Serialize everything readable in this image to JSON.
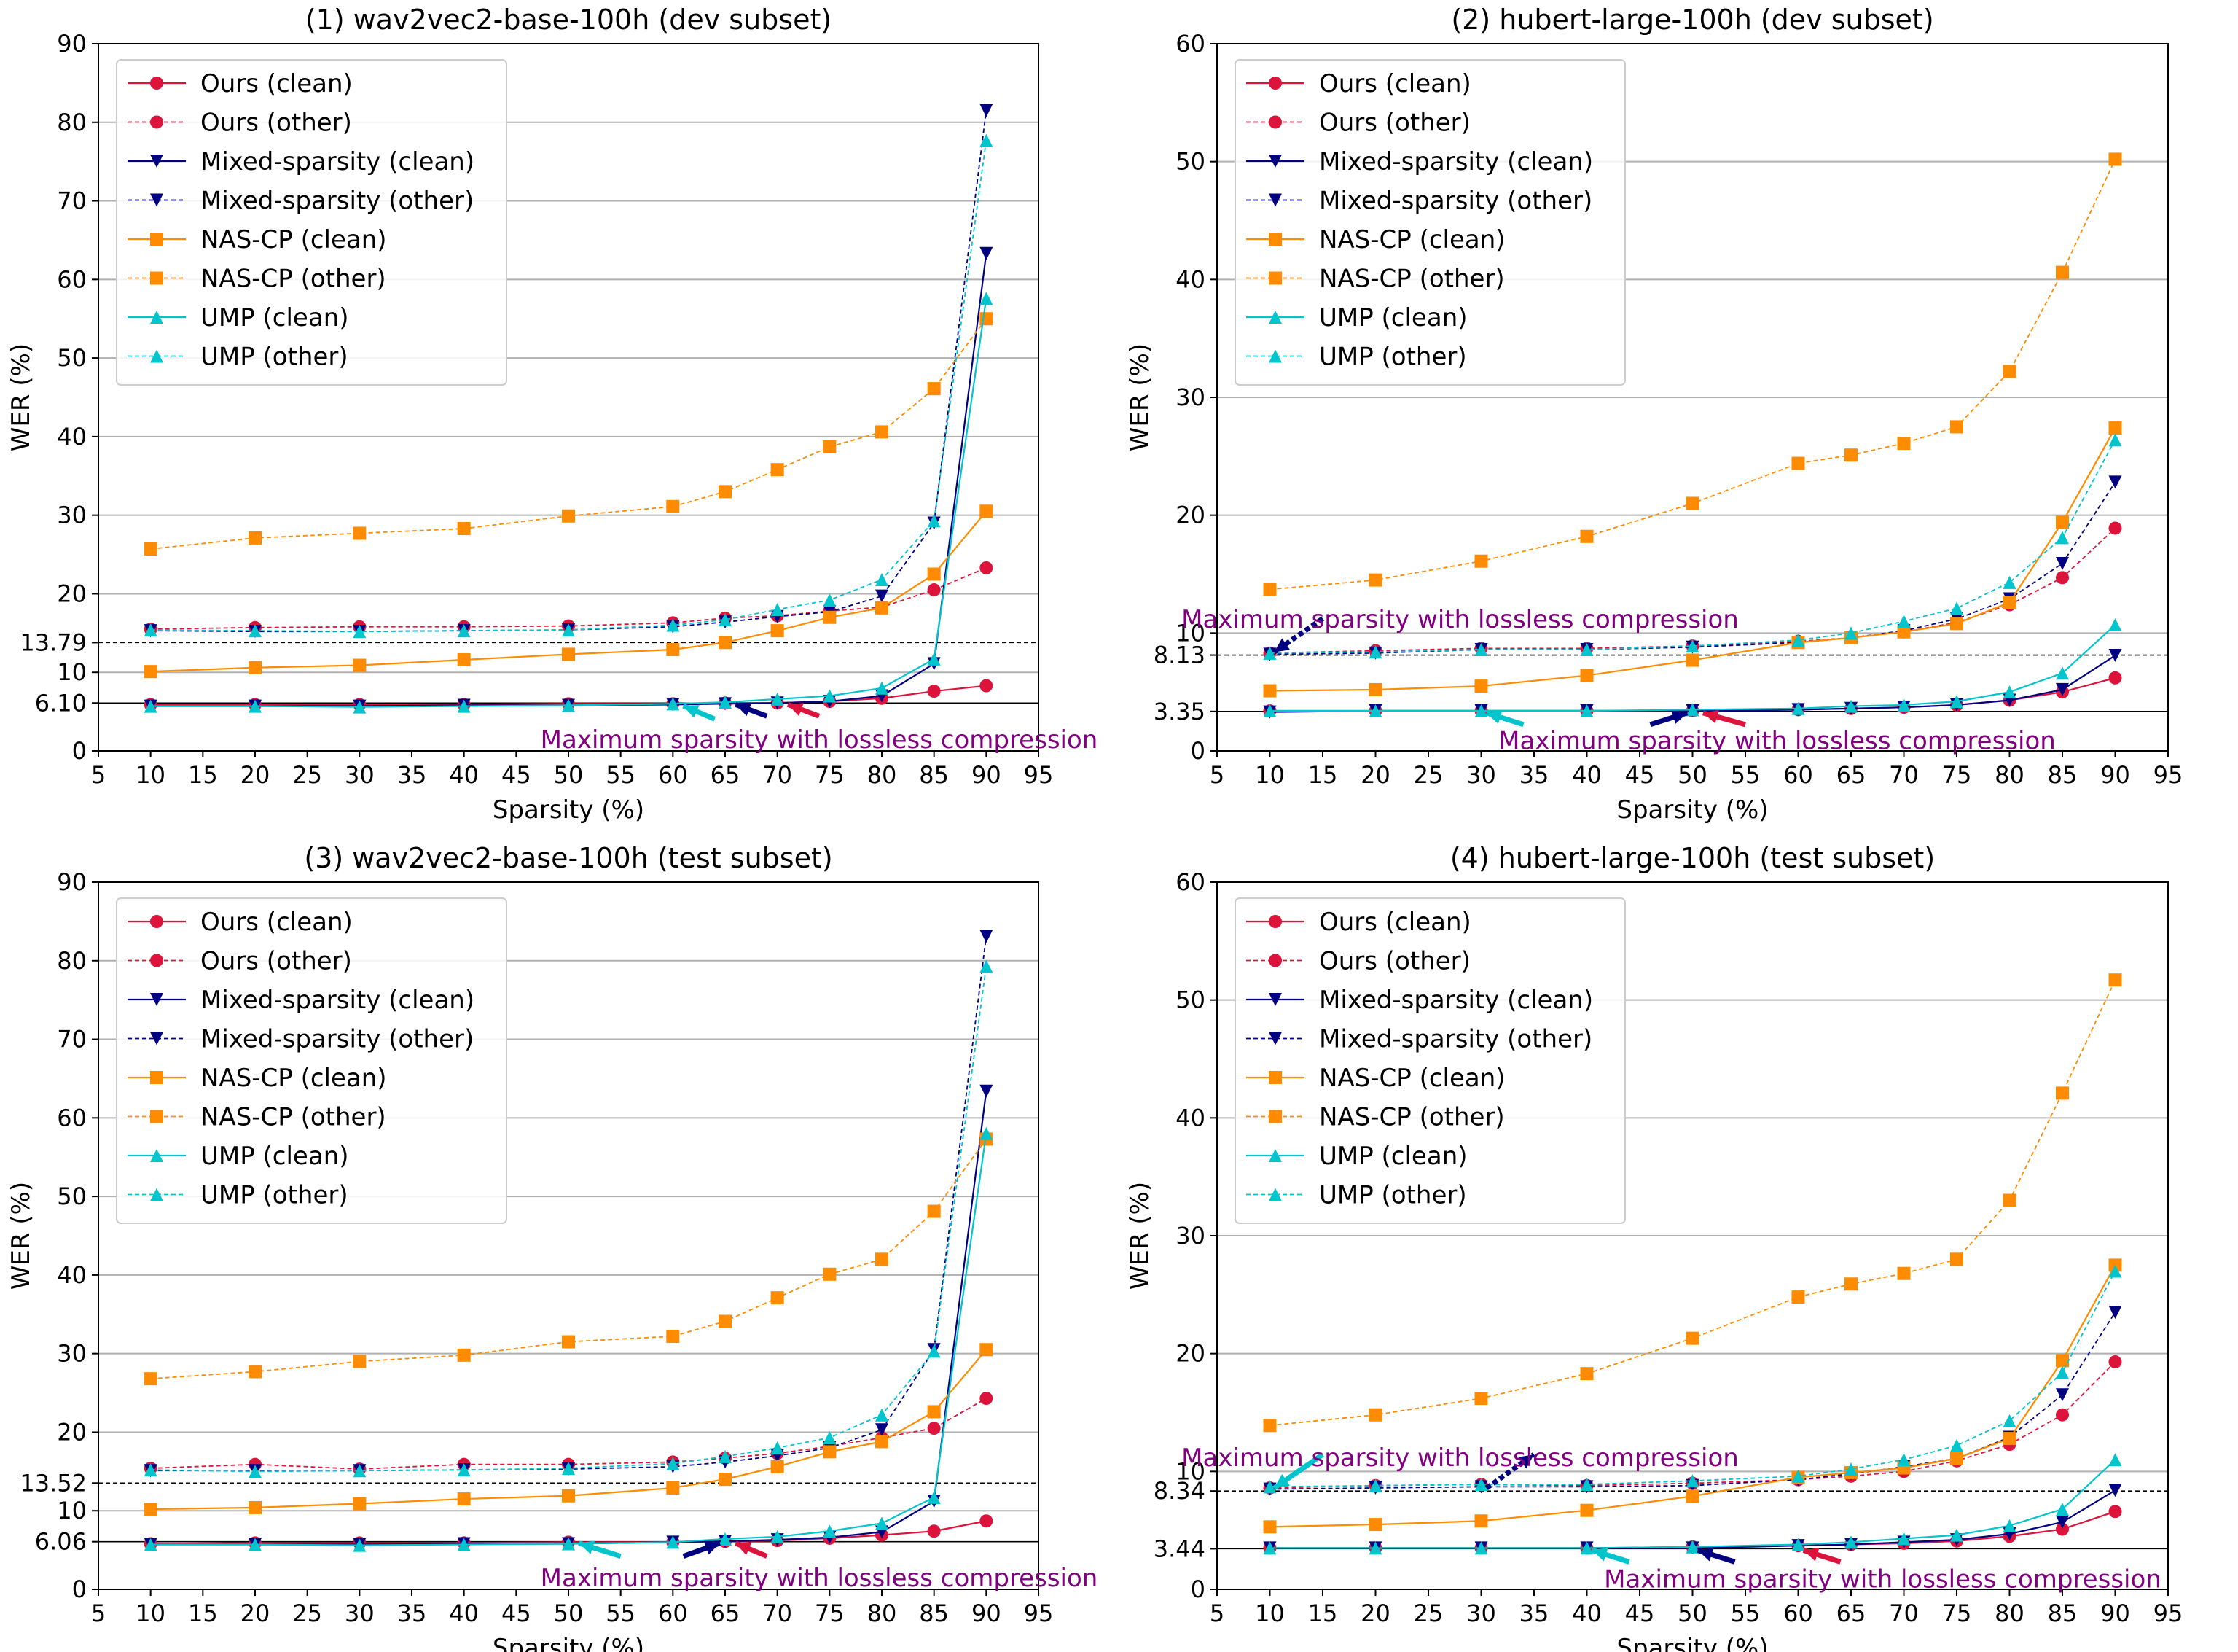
{
  "colors": {
    "ours": "#dc143c",
    "mixed": "#000080",
    "nascp": "#ff8c00",
    "ump": "#00c5cd",
    "annotation": "#800080",
    "grid": "#b0b0b0"
  },
  "chart_data": [
    {
      "type": "line",
      "title": "(1) wav2vec2-base-100h (dev subset)",
      "xlabel": "Sparsity (%)",
      "ylabel": "WER (%)",
      "xlim": [
        5,
        95
      ],
      "ylim": [
        0,
        90
      ],
      "xticks": [
        5,
        10,
        15,
        20,
        25,
        30,
        35,
        40,
        45,
        50,
        55,
        60,
        65,
        70,
        75,
        80,
        85,
        90,
        95
      ],
      "yticks": [
        0,
        10,
        20,
        30,
        40,
        50,
        60,
        70,
        80,
        90
      ],
      "ref_lines": [
        13.79,
        6.1
      ],
      "ref_labels": [
        "13.79",
        "6.10"
      ],
      "x": [
        10,
        20,
        30,
        40,
        50,
        60,
        65,
        70,
        75,
        80,
        85,
        90
      ],
      "series": [
        {
          "name": "Ours (clean)",
          "style": "solid",
          "marker": "circle",
          "color": "ours",
          "values": [
            5.9,
            5.9,
            5.9,
            5.9,
            6.0,
            6.0,
            6.1,
            6.1,
            6.3,
            6.7,
            7.6,
            8.3
          ]
        },
        {
          "name": "Ours (other)",
          "style": "dashed",
          "marker": "circle",
          "color": "ours",
          "values": [
            15.5,
            15.7,
            15.8,
            15.8,
            15.9,
            16.3,
            16.9,
            17.2,
            17.8,
            18.3,
            20.5,
            23.3
          ]
        },
        {
          "name": "Mixed-sparsity (clean)",
          "style": "solid",
          "marker": "tri-down",
          "color": "mixed",
          "values": [
            5.7,
            5.7,
            5.7,
            5.8,
            5.8,
            5.9,
            6.0,
            6.1,
            6.3,
            7.0,
            11.1,
            63.3
          ]
        },
        {
          "name": "Mixed-sparsity (other)",
          "style": "dashed",
          "marker": "tri-down",
          "color": "mixed",
          "values": [
            15.3,
            15.2,
            15.2,
            15.3,
            15.4,
            15.8,
            16.4,
            17.1,
            17.7,
            19.7,
            29.0,
            81.5
          ]
        },
        {
          "name": "NAS-CP (clean)",
          "style": "solid",
          "marker": "square",
          "color": "nascp",
          "values": [
            10.1,
            10.6,
            10.9,
            11.6,
            12.3,
            12.9,
            13.8,
            15.3,
            17.0,
            18.2,
            22.5,
            30.5
          ]
        },
        {
          "name": "NAS-CP (other)",
          "style": "dashed",
          "marker": "square",
          "color": "nascp",
          "values": [
            25.7,
            27.1,
            27.7,
            28.3,
            29.9,
            31.1,
            33.0,
            35.8,
            38.7,
            40.6,
            46.1,
            55.0
          ]
        },
        {
          "name": "UMP (clean)",
          "style": "solid",
          "marker": "tri-up",
          "color": "ump",
          "values": [
            5.7,
            5.7,
            5.6,
            5.7,
            5.8,
            6.0,
            6.2,
            6.6,
            7.0,
            8.0,
            11.7,
            57.6
          ]
        },
        {
          "name": "UMP (other)",
          "style": "dashed",
          "marker": "tri-up",
          "color": "ump",
          "values": [
            15.4,
            15.3,
            15.2,
            15.3,
            15.4,
            16.0,
            16.7,
            18.0,
            19.2,
            21.8,
            29.3,
            77.7
          ]
        }
      ],
      "annotation": {
        "text": "Maximum sparsity with lossless compression",
        "x": 74,
        "y": 1.5
      }
    },
    {
      "type": "line",
      "title": "(2) hubert-large-100h (dev subset)",
      "xlabel": "Sparsity (%)",
      "ylabel": "WER (%)",
      "xlim": [
        5,
        95
      ],
      "ylim": [
        0,
        60
      ],
      "xticks": [
        5,
        10,
        15,
        20,
        25,
        30,
        35,
        40,
        45,
        50,
        55,
        60,
        65,
        70,
        75,
        80,
        85,
        90,
        95
      ],
      "yticks": [
        0,
        10,
        20,
        30,
        40,
        50,
        60
      ],
      "ref_lines": [
        8.13,
        3.35
      ],
      "ref_labels": [
        "8.13",
        "3.35"
      ],
      "x": [
        10,
        20,
        30,
        40,
        50,
        60,
        65,
        70,
        75,
        80,
        85,
        90
      ],
      "series": [
        {
          "name": "Ours (clean)",
          "style": "solid",
          "marker": "circle",
          "color": "ours",
          "values": [
            3.4,
            3.4,
            3.4,
            3.4,
            3.4,
            3.5,
            3.6,
            3.7,
            3.9,
            4.3,
            5.0,
            6.2
          ]
        },
        {
          "name": "Ours (other)",
          "style": "dashed",
          "marker": "circle",
          "color": "ours",
          "values": [
            8.3,
            8.5,
            8.7,
            8.7,
            8.9,
            9.3,
            9.6,
            10.1,
            10.9,
            12.4,
            14.7,
            18.9
          ]
        },
        {
          "name": "Mixed-sparsity (clean)",
          "style": "solid",
          "marker": "tri-down",
          "color": "mixed",
          "values": [
            3.3,
            3.4,
            3.4,
            3.4,
            3.4,
            3.5,
            3.6,
            3.7,
            3.9,
            4.3,
            5.2,
            8.1
          ]
        },
        {
          "name": "Mixed-sparsity (other)",
          "style": "dashed",
          "marker": "tri-down",
          "color": "mixed",
          "values": [
            8.2,
            8.3,
            8.6,
            8.6,
            8.8,
            9.2,
            9.6,
            10.2,
            11.2,
            12.9,
            15.9,
            22.8
          ]
        },
        {
          "name": "NAS-CP (clean)",
          "style": "solid",
          "marker": "square",
          "color": "nascp",
          "values": [
            5.1,
            5.2,
            5.5,
            6.4,
            7.7,
            9.2,
            9.6,
            10.1,
            10.8,
            12.6,
            19.4,
            27.4
          ]
        },
        {
          "name": "NAS-CP (other)",
          "style": "dashed",
          "marker": "square",
          "color": "nascp",
          "values": [
            13.7,
            14.5,
            16.1,
            18.2,
            21.0,
            24.4,
            25.1,
            26.1,
            27.5,
            32.2,
            40.6,
            50.2
          ]
        },
        {
          "name": "UMP (clean)",
          "style": "solid",
          "marker": "tri-up",
          "color": "ump",
          "values": [
            3.4,
            3.4,
            3.4,
            3.4,
            3.5,
            3.6,
            3.8,
            3.9,
            4.2,
            5.0,
            6.6,
            10.7
          ]
        },
        {
          "name": "UMP (other)",
          "style": "dashed",
          "marker": "tri-up",
          "color": "ump",
          "values": [
            8.3,
            8.4,
            8.6,
            8.6,
            8.9,
            9.4,
            10.0,
            11.0,
            12.1,
            14.3,
            18.1,
            26.4
          ]
        }
      ],
      "annotation": {
        "text": "Maximum sparsity with lossless compression",
        "x": 28,
        "y": 11.2,
        "text2": "Maximum sparsity with lossless compression",
        "x2": 58,
        "y2": 0.9
      }
    },
    {
      "type": "line",
      "title": "(3) wav2vec2-base-100h (test subset)",
      "xlabel": "Sparsity (%)",
      "ylabel": "WER (%)",
      "xlim": [
        5,
        95
      ],
      "ylim": [
        0,
        90
      ],
      "xticks": [
        5,
        10,
        15,
        20,
        25,
        30,
        35,
        40,
        45,
        50,
        55,
        60,
        65,
        70,
        75,
        80,
        85,
        90,
        95
      ],
      "yticks": [
        0,
        10,
        20,
        30,
        40,
        50,
        60,
        70,
        80,
        90
      ],
      "ref_lines": [
        13.52,
        6.06
      ],
      "ref_labels": [
        "13.52",
        "6.06"
      ],
      "x": [
        10,
        20,
        30,
        40,
        50,
        60,
        65,
        70,
        75,
        80,
        85,
        90
      ],
      "series": [
        {
          "name": "Ours (clean)",
          "style": "solid",
          "marker": "circle",
          "color": "ours",
          "values": [
            5.8,
            5.9,
            5.9,
            5.9,
            6.0,
            6.0,
            6.1,
            6.2,
            6.5,
            6.9,
            7.4,
            8.7
          ]
        },
        {
          "name": "Ours (other)",
          "style": "dashed",
          "marker": "circle",
          "color": "ours",
          "values": [
            15.4,
            15.9,
            15.3,
            15.9,
            15.9,
            16.2,
            16.7,
            17.3,
            18.2,
            19.3,
            20.5,
            24.3
          ]
        },
        {
          "name": "Mixed-sparsity (clean)",
          "style": "solid",
          "marker": "tri-down",
          "color": "mixed",
          "values": [
            5.7,
            5.7,
            5.7,
            5.8,
            5.8,
            6.0,
            6.1,
            6.3,
            6.6,
            7.3,
            11.2,
            63.4
          ]
        },
        {
          "name": "Mixed-sparsity (other)",
          "style": "dashed",
          "marker": "tri-down",
          "color": "mixed",
          "values": [
            15.1,
            15.1,
            15.1,
            15.2,
            15.3,
            15.6,
            16.2,
            17.0,
            18.0,
            20.3,
            30.5,
            83.1
          ]
        },
        {
          "name": "NAS-CP (clean)",
          "style": "solid",
          "marker": "square",
          "color": "nascp",
          "values": [
            10.2,
            10.4,
            10.9,
            11.5,
            11.9,
            12.9,
            14.0,
            15.6,
            17.5,
            18.8,
            22.6,
            30.5
          ]
        },
        {
          "name": "NAS-CP (other)",
          "style": "dashed",
          "marker": "square",
          "color": "nascp",
          "values": [
            26.8,
            27.7,
            29.0,
            29.8,
            31.5,
            32.2,
            34.1,
            37.1,
            40.1,
            42.0,
            48.1,
            57.3
          ]
        },
        {
          "name": "UMP (clean)",
          "style": "solid",
          "marker": "tri-up",
          "color": "ump",
          "values": [
            5.7,
            5.7,
            5.6,
            5.7,
            5.8,
            6.0,
            6.4,
            6.7,
            7.4,
            8.4,
            11.7,
            58.0
          ]
        },
        {
          "name": "UMP (other)",
          "style": "dashed",
          "marker": "tri-up",
          "color": "ump",
          "values": [
            15.2,
            15.0,
            15.1,
            15.2,
            15.4,
            16.0,
            16.9,
            18.0,
            19.3,
            22.2,
            30.3,
            79.3
          ]
        }
      ],
      "annotation": {
        "text": "Maximum sparsity with lossless compression",
        "x": 74,
        "y": 1.5
      }
    },
    {
      "type": "line",
      "title": "(4) hubert-large-100h (test subset)",
      "xlabel": "Sparsity (%)",
      "ylabel": "WER (%)",
      "xlim": [
        5,
        95
      ],
      "ylim": [
        0,
        60
      ],
      "xticks": [
        5,
        10,
        15,
        20,
        25,
        30,
        35,
        40,
        45,
        50,
        55,
        60,
        65,
        70,
        75,
        80,
        85,
        90,
        95
      ],
      "yticks": [
        0,
        10,
        20,
        30,
        40,
        50,
        60
      ],
      "ref_lines": [
        8.34,
        3.44
      ],
      "ref_labels": [
        "8.34",
        "3.44"
      ],
      "x": [
        10,
        20,
        30,
        40,
        50,
        60,
        65,
        70,
        75,
        80,
        85,
        90
      ],
      "series": [
        {
          "name": "Ours (clean)",
          "style": "solid",
          "marker": "circle",
          "color": "ours",
          "values": [
            3.5,
            3.5,
            3.5,
            3.5,
            3.6,
            3.7,
            3.8,
            3.9,
            4.1,
            4.5,
            5.1,
            6.6
          ]
        },
        {
          "name": "Ours (other)",
          "style": "dashed",
          "marker": "circle",
          "color": "ours",
          "values": [
            8.6,
            8.8,
            8.9,
            8.8,
            9.0,
            9.3,
            9.6,
            10.0,
            10.9,
            12.3,
            14.8,
            19.3
          ]
        },
        {
          "name": "Mixed-sparsity (clean)",
          "style": "solid",
          "marker": "tri-down",
          "color": "mixed",
          "values": [
            3.5,
            3.5,
            3.5,
            3.5,
            3.5,
            3.7,
            3.8,
            4.0,
            4.2,
            4.7,
            5.7,
            8.4
          ]
        },
        {
          "name": "Mixed-sparsity (other)",
          "style": "dashed",
          "marker": "tri-down",
          "color": "mixed",
          "values": [
            8.5,
            8.6,
            8.7,
            8.7,
            8.8,
            9.3,
            9.8,
            10.4,
            11.1,
            12.9,
            16.5,
            23.5
          ]
        },
        {
          "name": "NAS-CP (clean)",
          "style": "solid",
          "marker": "square",
          "color": "nascp",
          "values": [
            5.3,
            5.5,
            5.8,
            6.7,
            7.9,
            9.5,
            9.9,
            10.3,
            11.1,
            12.8,
            19.4,
            27.5
          ]
        },
        {
          "name": "NAS-CP (other)",
          "style": "dashed",
          "marker": "square",
          "color": "nascp",
          "values": [
            13.9,
            14.8,
            16.2,
            18.3,
            21.3,
            24.8,
            25.9,
            26.8,
            28.0,
            33.0,
            42.1,
            51.7
          ]
        },
        {
          "name": "UMP (clean)",
          "style": "solid",
          "marker": "tri-up",
          "color": "ump",
          "values": [
            3.5,
            3.5,
            3.5,
            3.5,
            3.6,
            3.8,
            4.0,
            4.3,
            4.6,
            5.4,
            6.8,
            11.0
          ]
        },
        {
          "name": "UMP (other)",
          "style": "dashed",
          "marker": "tri-up",
          "color": "ump",
          "values": [
            8.7,
            8.8,
            8.9,
            8.9,
            9.2,
            9.6,
            10.2,
            11.0,
            12.2,
            14.3,
            18.4,
            27.0
          ]
        }
      ],
      "annotation": {
        "text": "Maximum sparsity with lossless compression",
        "x": 28,
        "y": 11.2,
        "text2": "Maximum sparsity with lossless compression",
        "x2": 68,
        "y2": 0.9
      }
    }
  ]
}
